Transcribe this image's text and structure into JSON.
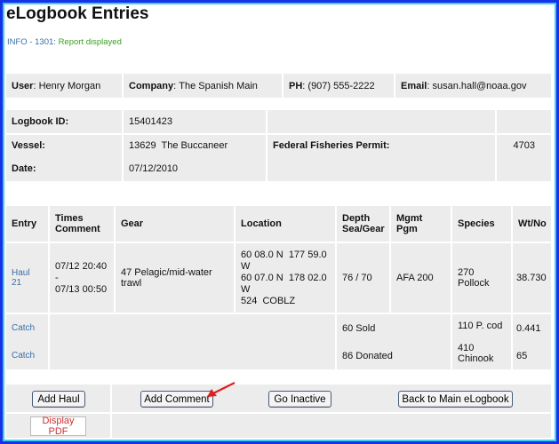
{
  "title": "eLogbook Entries",
  "info": {
    "code": "INFO - 1301:",
    "message": "Report displayed"
  },
  "user": {
    "user_label": "User",
    "user": "Henry Morgan",
    "company_label": "Company",
    "company": "The Spanish Main",
    "ph_label": "PH",
    "ph": "(907) 555-2222",
    "email_label": "Email",
    "email": "susan.hall@noaa.gov"
  },
  "logbook": {
    "id_label": "Logbook ID:",
    "id": "15401423",
    "vessel_label": "Vessel:",
    "vessel": "13629  The Buccaneer",
    "date_label": "Date:",
    "date": "07/12/2010",
    "permit_label": "Federal Fisheries Permit:",
    "permit": "4703"
  },
  "entries": {
    "headers": [
      "Entry",
      "Times Comment",
      "Gear",
      "Location",
      "Depth Sea/Gear",
      "Mgmt Pgm",
      "Species",
      "Wt/No"
    ],
    "haul": {
      "entry": "Haul 21",
      "times": [
        "07/12 20:40",
        "-",
        "07/13 00:50"
      ],
      "gear": "47 Pelagic/mid-water trawl",
      "location": [
        "60 08.0 N  177 59.0 W",
        "60 07.0 N  178 02.0 W",
        "524  COBLZ"
      ],
      "depth": "76 / 70",
      "mgmt": "AFA 200",
      "species": "270 Pollock",
      "wt": "38.730"
    },
    "catches": [
      {
        "entry": "Catch",
        "disposition": "60 Sold",
        "species": "110 P. cod",
        "wt": "0.441"
      },
      {
        "entry": "Catch",
        "disposition": "86 Donated",
        "species": "410 Chinook",
        "wt": "65"
      }
    ]
  },
  "buttons": {
    "add_haul": "Add Haul",
    "add_comment": "Add Comment",
    "go_inactive": "Go Inactive",
    "back": "Back to Main eLogbook",
    "display_pdf": "Display PDF"
  },
  "colors": {
    "border": "#1a2fe8",
    "link": "#3a6ea8",
    "success": "#39a020",
    "pdf": "#d03030",
    "arrow": "#e02020"
  }
}
